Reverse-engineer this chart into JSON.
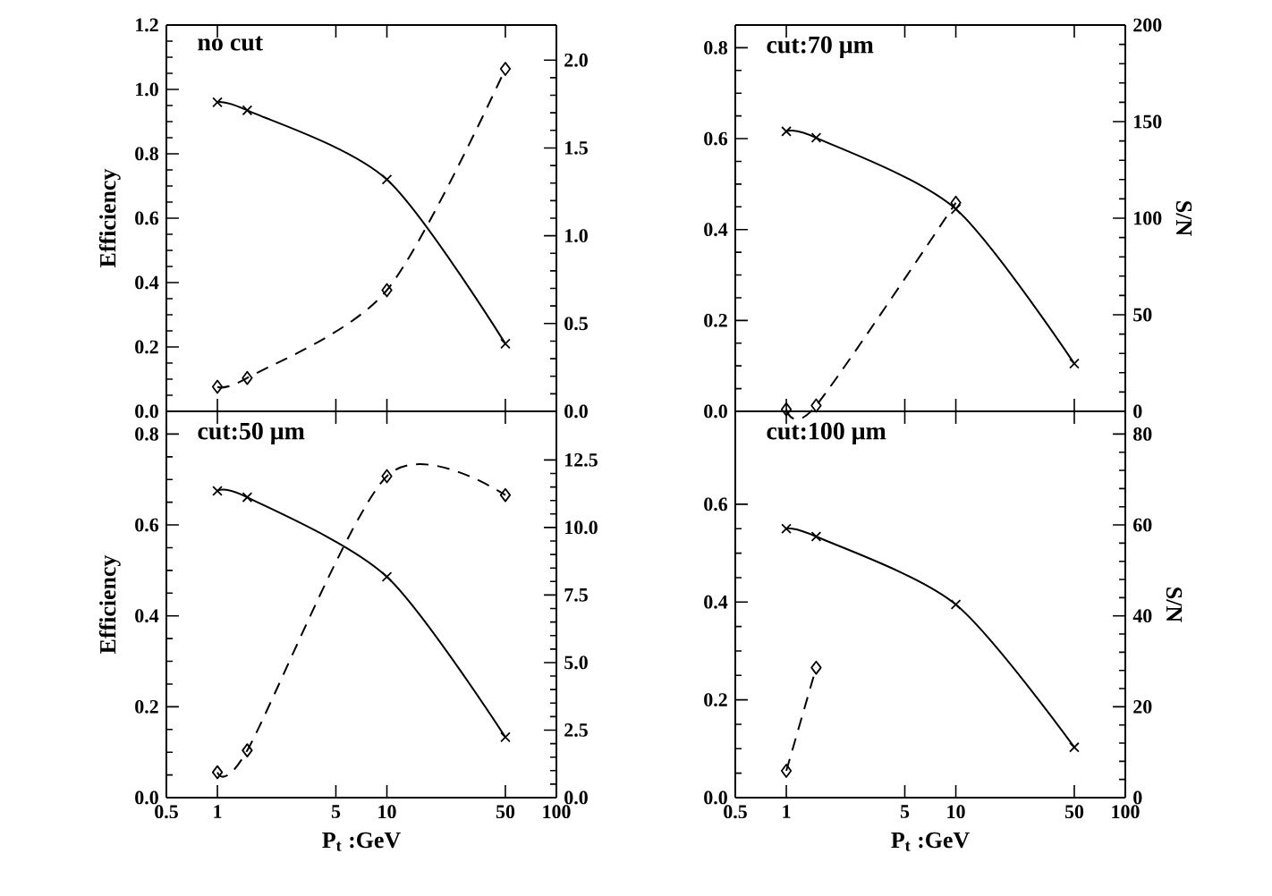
{
  "chart_data": [
    {
      "type": "line",
      "x": [
        1,
        1.5,
        10,
        50
      ],
      "xlim": [
        0.5,
        100
      ],
      "xticks": [
        0.5,
        1,
        5,
        10,
        50,
        100
      ],
      "log": "x",
      "tick_labels": "y",
      "ylim": [
        0,
        1.2
      ],
      "yticks": [
        {
          "value": 0,
          "label": "0.0"
        },
        {
          "value": 0.2,
          "label": "0.2"
        },
        {
          "value": 0.4,
          "label": "0.4"
        },
        {
          "value": 0.6,
          "label": "0.6"
        },
        {
          "value": 0.8,
          "label": "0.8"
        },
        {
          "value": 1.0,
          "label": "1.0"
        },
        {
          "value": 1.2,
          "label": "1.2"
        }
      ],
      "y2lim": [
        0,
        2.2
      ],
      "y2ticks": [
        {
          "value": 0,
          "label": "0.0"
        },
        {
          "value": 0.5,
          "label": "0.5"
        },
        {
          "value": 1.0,
          "label": "1.0"
        },
        {
          "value": 1.5,
          "label": "1.5"
        },
        {
          "value": 2.0,
          "label": "2.0"
        }
      ],
      "ylabel": "Efficiency",
      "annotations": [
        "no cut"
      ],
      "series": [
        {
          "color": "#000000",
          "marker": "cross",
          "line_style": "solid",
          "values": [
            0.96,
            0.935,
            0.72,
            0.21
          ]
        },
        {
          "color": "#000000",
          "marker": "diamond",
          "line_style": "dashed",
          "axis": "y2",
          "values": [
            0.14,
            0.19,
            0.69,
            1.95
          ]
        }
      ]
    },
    {
      "type": "line",
      "x": [
        1,
        1.5,
        10,
        50
      ],
      "xlim": [
        0.5,
        100
      ],
      "xticks": [
        0.5,
        1,
        5,
        10,
        50,
        100
      ],
      "log": "x",
      "tick_labels": "y",
      "ylim": [
        0,
        0.85
      ],
      "yticks": [
        {
          "value": 0,
          "label": "0.0"
        },
        {
          "value": 0.2,
          "label": "0.2"
        },
        {
          "value": 0.4,
          "label": "0.4"
        },
        {
          "value": 0.6,
          "label": "0.6"
        },
        {
          "value": 0.8,
          "label": "0.8"
        }
      ],
      "y2lim": [
        0,
        200
      ],
      "y2ticks": [
        0,
        50,
        100,
        150,
        200
      ],
      "y2label": "S/N",
      "annotations": [
        "cut:70 μm"
      ],
      "series": [
        {
          "color": "#000000",
          "marker": "cross",
          "line_style": "solid",
          "values": [
            0.616,
            0.602,
            0.445,
            0.105
          ]
        },
        {
          "color": "#000000",
          "marker": "diamond",
          "line_style": "dashed",
          "axis": "y2",
          "values": [
            1,
            3,
            108,
            null
          ]
        }
      ]
    },
    {
      "type": "line",
      "x": [
        1,
        1.5,
        10,
        50
      ],
      "xlim": [
        0.5,
        100
      ],
      "xticks": [
        0.5,
        1,
        5,
        10,
        50,
        100
      ],
      "log": "x",
      "ylim": [
        0,
        0.85
      ],
      "yticks": [
        {
          "value": 0,
          "label": "0.0"
        },
        {
          "value": 0.2,
          "label": "0.2"
        },
        {
          "value": 0.4,
          "label": "0.4"
        },
        {
          "value": 0.6,
          "label": "0.6"
        },
        {
          "value": 0.8,
          "label": "0.8"
        }
      ],
      "y2lim": [
        0,
        14.3
      ],
      "y2ticks": [
        {
          "value": 0,
          "label": "0.0"
        },
        {
          "value": 2.5,
          "label": "2.5"
        },
        {
          "value": 5,
          "label": "5.0"
        },
        {
          "value": 7.5,
          "label": "7.5"
        },
        {
          "value": 10,
          "label": "10.0"
        },
        {
          "value": 12.5,
          "label": "12.5"
        }
      ],
      "ylabel": "Efficiency",
      "xlabel": "P$_{t}$ :GeV",
      "annotations": [
        "cut:50 μm"
      ],
      "series": [
        {
          "color": "#000000",
          "marker": "cross",
          "line_style": "solid",
          "values": [
            0.675,
            0.661,
            0.486,
            0.133
          ]
        },
        {
          "color": "#000000",
          "marker": "diamond",
          "line_style": "dashed",
          "axis": "y2",
          "values": [
            0.94,
            1.75,
            11.9,
            11.2
          ]
        }
      ]
    },
    {
      "type": "line",
      "x": [
        1,
        1.5,
        10,
        50
      ],
      "xlim": [
        0.5,
        100
      ],
      "xticks": [
        0.5,
        1,
        5,
        10,
        50,
        100
      ],
      "log": "x",
      "ylim": [
        0,
        0.79
      ],
      "yticks": [
        {
          "value": 0,
          "label": "0.0"
        },
        {
          "value": 0.2,
          "label": "0.2"
        },
        {
          "value": 0.4,
          "label": "0.4"
        },
        {
          "value": 0.6,
          "label": "0.6"
        }
      ],
      "y2lim": [
        0,
        85
      ],
      "y2ticks": [
        0,
        20,
        40,
        60,
        80
      ],
      "y2label": "S/N",
      "xlabel": "P$_{t}$ :GeV",
      "annotations": [
        "cut:100 μm"
      ],
      "series": [
        {
          "color": "#000000",
          "marker": "cross",
          "line_style": "solid",
          "values": [
            0.55,
            0.534,
            0.395,
            0.103
          ]
        },
        {
          "color": "#000000",
          "marker": "diamond",
          "line_style": "dashed",
          "axis": "y2",
          "values": [
            5.9,
            28.6,
            null,
            null
          ]
        }
      ]
    }
  ]
}
